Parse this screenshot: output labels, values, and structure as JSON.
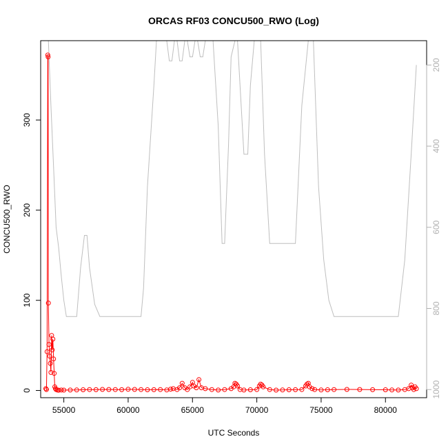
{
  "chart_data": {
    "type": "line",
    "title": "ORCAS RF03 CONCU500_RWO (Log)",
    "xlabel": "UTC Seconds",
    "ylabel": "CONCU500_RWO",
    "xlim": [
      53200,
      83200
    ],
    "ylim": [
      -8,
      388
    ],
    "xticks": [
      55000,
      60000,
      65000,
      70000,
      75000,
      80000
    ],
    "yticks": [
      0,
      100,
      200,
      300
    ],
    "y2ticks": [
      200,
      400,
      600,
      800,
      1000
    ],
    "y2lim": [
      1020,
      140
    ],
    "y2_reversed": true,
    "colors": {
      "concentration": "#ff0000",
      "pressure": "#bebebe",
      "axes": "#000000",
      "right_axis": "#b0b0b0"
    },
    "series": [
      {
        "key": "pressure",
        "axis": "right",
        "style": "line",
        "x": [
          53800,
          54000,
          54200,
          54400,
          54600,
          54800,
          55000,
          55200,
          55500,
          56000,
          56300,
          56600,
          56800,
          57000,
          57400,
          57800,
          58000,
          60000,
          61000,
          61200,
          61500,
          62000,
          62200,
          62500,
          63000,
          63200,
          63400,
          63600,
          63800,
          64000,
          64200,
          64400,
          64600,
          64800,
          65000,
          65200,
          65400,
          65600,
          65800,
          66000,
          66200,
          66400,
          66600,
          67000,
          67300,
          67500,
          67800,
          68000,
          68300,
          68500,
          69000,
          69300,
          69500,
          69800,
          70000,
          70300,
          70600,
          71000,
          71500,
          72000,
          72500,
          73000,
          73500,
          74000,
          74400,
          74800,
          75200,
          75600,
          76000,
          78000,
          80000,
          81000,
          81500,
          82000,
          82400
        ],
        "y": [
          140,
          300,
          450,
          600,
          650,
          720,
          780,
          820,
          820,
          820,
          700,
          620,
          620,
          700,
          790,
          820,
          820,
          820,
          820,
          750,
          500,
          250,
          140,
          140,
          140,
          190,
          190,
          140,
          140,
          190,
          190,
          140,
          140,
          180,
          180,
          140,
          140,
          180,
          180,
          140,
          140,
          140,
          140,
          350,
          640,
          640,
          400,
          180,
          140,
          140,
          420,
          420,
          250,
          140,
          140,
          140,
          420,
          640,
          640,
          640,
          640,
          640,
          300,
          140,
          140,
          500,
          680,
          780,
          820,
          820,
          820,
          820,
          680,
          420,
          200
        ]
      },
      {
        "key": "concentration",
        "axis": "left",
        "style": "line-points",
        "x": [
          53600,
          53650,
          53700,
          53750,
          53780,
          53800,
          53850,
          53900,
          53950,
          54000,
          54050,
          54100,
          54150,
          54200,
          54250,
          54300,
          54350,
          54400,
          54500,
          54600,
          54800,
          55000,
          55500,
          56000,
          56500,
          57000,
          57500,
          58000,
          58500,
          59000,
          59500,
          60000,
          60500,
          61000,
          61500,
          62000,
          62500,
          63000,
          63300,
          63500,
          63800,
          64000,
          64200,
          64400,
          64600,
          64800,
          65000,
          65100,
          65300,
          65500,
          65700,
          66000,
          66500,
          67000,
          67500,
          68000,
          68200,
          68300,
          68400,
          68500,
          68700,
          69000,
          69500,
          70000,
          70200,
          70300,
          70400,
          70500,
          71000,
          71500,
          72000,
          72500,
          73000,
          73500,
          73800,
          73900,
          74000,
          74100,
          74300,
          74500,
          75000,
          75500,
          76000,
          77000,
          78000,
          79000,
          80000,
          80500,
          81000,
          81500,
          81800,
          82000,
          82100,
          82200,
          82300,
          82400
        ],
        "y": [
          2,
          1,
          43,
          372,
          370,
          97,
          51,
          38,
          30,
          20,
          61,
          45,
          57,
          35,
          19,
          4,
          2,
          1,
          0.5,
          0.3,
          0.5,
          0.4,
          0.5,
          0.6,
          0.8,
          1.0,
          0.9,
          1.2,
          1.1,
          1.0,
          0.9,
          1.3,
          1.2,
          1.0,
          0.8,
          0.9,
          1.0,
          0.6,
          1.5,
          2,
          1,
          3,
          8,
          3,
          1,
          4,
          9,
          5,
          3,
          12,
          3,
          2,
          1,
          0.5,
          1,
          2,
          4,
          8,
          7,
          5,
          1,
          0.5,
          0.8,
          1,
          5,
          7,
          6,
          4,
          1,
          0.4,
          0.6,
          0.8,
          0.9,
          1,
          5,
          7,
          8,
          4,
          2,
          1,
          0.6,
          0.8,
          1,
          1.2,
          1.1,
          0.9,
          0.8,
          0.6,
          0.5,
          1,
          2,
          6,
          3,
          1,
          4,
          2
        ]
      }
    ]
  }
}
